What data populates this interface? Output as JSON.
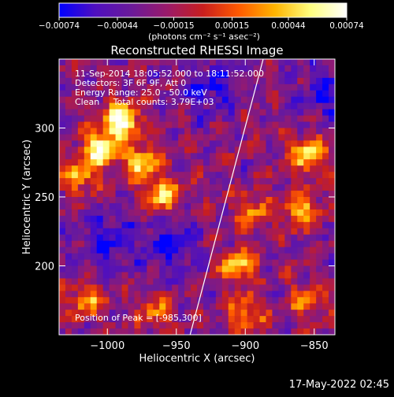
{
  "chart_data": {
    "type": "heatmap",
    "title": "Reconstructed RHESSI Image",
    "xlabel": "Heliocentric X (arcsec)",
    "ylabel": "Heliocentric Y (arcsec)",
    "xlim": [
      -1035,
      -835
    ],
    "ylim": [
      150,
      350
    ],
    "xticks": [
      -1000,
      -950,
      -900,
      -850
    ],
    "xtick_labels": [
      "−1000",
      "−950",
      "−900",
      "−850"
    ],
    "yticks": [
      200,
      250,
      300
    ],
    "ytick_labels": [
      "200",
      "250",
      "300"
    ],
    "colorbar": {
      "range": [
        -0.00074,
        0.00074
      ],
      "tick_values": [
        -0.00074,
        -0.00044,
        -0.00015,
        0.00015,
        0.00044,
        0.00074
      ],
      "tick_labels": [
        "−0.00074",
        "−0.00044",
        "−0.00015",
        "0.00015",
        "0.00044",
        "0.00074"
      ],
      "units_label": "(photons cm⁻² s⁻¹ asec⁻²)",
      "colors": [
        "#0000ff",
        "#4f0fbf",
        "#6a1a9a",
        "#9a1a6a",
        "#c81e1e",
        "#ff5a00",
        "#ffb400",
        "#ffff80",
        "#ffffff"
      ]
    },
    "annotations": {
      "time_range": "11-Sep-2014 18:05:52.000 to 18:11:52.000",
      "detectors": "Detectors: 3F 6F 9F, Att 0",
      "energy_range": "Energy Range: 25.0 - 50.0 keV",
      "clean_line": "Clean     Total counts: 3.79E+03",
      "peak": "Position of Peak = [-985,300]"
    },
    "peak_position": [
      -985,
      300
    ],
    "limb_line": [
      [
        -940,
        150
      ],
      [
        -887,
        350
      ]
    ],
    "bright_sources": [
      {
        "x": -990,
        "y": 305,
        "level": 1.0
      },
      {
        "x": -1005,
        "y": 285,
        "level": 0.8
      },
      {
        "x": -975,
        "y": 275,
        "level": 0.7
      },
      {
        "x": -960,
        "y": 250,
        "level": 0.65
      },
      {
        "x": -1020,
        "y": 265,
        "level": 0.55
      },
      {
        "x": -855,
        "y": 280,
        "level": 0.7
      },
      {
        "x": -860,
        "y": 240,
        "level": 0.6
      },
      {
        "x": -895,
        "y": 240,
        "level": 0.45
      },
      {
        "x": -905,
        "y": 200,
        "level": 0.6
      },
      {
        "x": -900,
        "y": 165,
        "level": 0.55
      },
      {
        "x": -855,
        "y": 175,
        "level": 0.45
      },
      {
        "x": -1015,
        "y": 175,
        "level": 0.5
      },
      {
        "x": -965,
        "y": 165,
        "level": 0.4
      }
    ],
    "dark_regions": [
      {
        "x": -925,
        "y": 330
      },
      {
        "x": -955,
        "y": 215
      },
      {
        "x": -1000,
        "y": 220
      },
      {
        "x": -840,
        "y": 325
      }
    ],
    "grid": false
  },
  "footer": {
    "timestamp": "17-May-2022 02:45"
  }
}
